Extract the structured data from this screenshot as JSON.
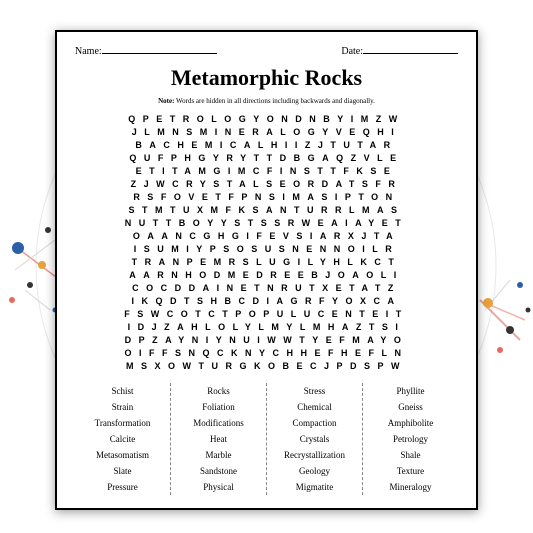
{
  "header": {
    "name_label": "Name:",
    "date_label": "Date:"
  },
  "title": "Metamorphic Rocks",
  "note_prefix": "Note:",
  "note_text": " Words are hidden in all directions including backwards and diagonally.",
  "grid_rows": [
    "QPETROLOGYONDNBYIMZW",
    "JLMNSMINERALOGYVEQHI",
    "BACHEMICALHIIZJTUTAR",
    "QUFPHGYRYTTDBGAQZVLE",
    "ETITAMGIMCFINSTTFKSE",
    "ZJWCRYSTALSEORDATSFR",
    "RSFOVETFPNSIMASIPTON",
    "STMTUXMFKSANTURRLMAS",
    "NUTTBOYYSTSSRWEAIAYET",
    "OAANCGHGIFEVSIARXJTA",
    "ISUMIYPSOSUSNENNOILR",
    "TRANPEMRSLUGILYHLKCT",
    "AARNHODMEDREEBJOAOLI",
    "COCDDAINETNRUTXETATZ",
    "IKQDTSHBCDIAGRFYOXCA",
    "FSWCOTCTPOPULUCENTEIT",
    "IDJZAHLOLYLMYLMHAZTSI",
    "DPZAYNIYNUIWWTYEFMAYO",
    "OIFFSNQCKNYCHHEFHEFLN",
    "MSXOWTURGKOBECJPDSPW"
  ],
  "wordbank": [
    [
      "Schist",
      "Strain",
      "Transformation",
      "Calcite",
      "Metasomatism",
      "Slate",
      "Pressure"
    ],
    [
      "Rocks",
      "Foliation",
      "Modifications",
      "Heat",
      "Marble",
      "Sandstone",
      "Physical"
    ],
    [
      "Stress",
      "Chemical",
      "Compaction",
      "Crystals",
      "Recrystallization",
      "Geology",
      "Migmatite"
    ],
    [
      "Phyllite",
      "Gneiss",
      "Amphibolite",
      "Petrology",
      "Shale",
      "Texture",
      "Mineralogy"
    ]
  ],
  "colors": {
    "border": "#000000",
    "bg": "#ffffff",
    "accent_red": "#e66a5e",
    "accent_blue": "#2b5fa8",
    "accent_orange": "#e8a23c",
    "accent_dark": "#333333",
    "decor_line": "#d8d8d8"
  }
}
